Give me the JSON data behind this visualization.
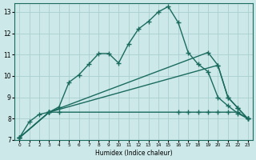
{
  "xlabel": "Humidex (Indice chaleur)",
  "bg_color": "#cce8e8",
  "line_color": "#1a6b5e",
  "grid_color": "#aacfcf",
  "xlim": [
    -0.5,
    23.5
  ],
  "ylim": [
    7,
    13.4
  ],
  "xticks": [
    0,
    1,
    2,
    3,
    4,
    5,
    6,
    7,
    8,
    9,
    10,
    11,
    12,
    13,
    14,
    15,
    16,
    17,
    18,
    19,
    20,
    21,
    22,
    23
  ],
  "yticks": [
    7,
    8,
    9,
    10,
    11,
    12,
    13
  ],
  "line1_x": [
    0,
    1,
    2,
    3,
    4,
    5,
    6,
    7,
    8,
    9,
    10,
    11,
    12,
    13,
    14,
    15,
    16,
    17,
    18,
    19,
    20,
    21,
    22,
    23
  ],
  "line1_y": [
    7.1,
    7.85,
    8.2,
    8.3,
    8.55,
    9.7,
    10.05,
    10.55,
    11.05,
    11.05,
    10.6,
    11.5,
    12.2,
    12.55,
    13.0,
    13.25,
    12.5,
    11.1,
    10.55,
    10.2,
    9.0,
    8.6,
    8.25,
    8.0
  ],
  "line2_x": [
    0,
    3,
    4,
    16,
    17,
    18,
    19,
    20,
    21,
    22,
    23
  ],
  "line2_y": [
    7.1,
    8.3,
    8.3,
    8.3,
    8.3,
    8.3,
    8.3,
    8.3,
    8.3,
    8.3,
    8.0
  ],
  "line3_x": [
    0,
    3,
    20,
    21,
    22,
    23
  ],
  "line3_y": [
    7.1,
    8.3,
    10.5,
    9.0,
    8.5,
    8.0
  ],
  "line4_x": [
    0,
    3,
    19,
    20,
    21,
    22,
    23
  ],
  "line4_y": [
    7.1,
    8.3,
    11.1,
    10.5,
    9.0,
    8.5,
    8.0
  ],
  "marker": "+",
  "markersize": 4,
  "linewidth": 1.0
}
